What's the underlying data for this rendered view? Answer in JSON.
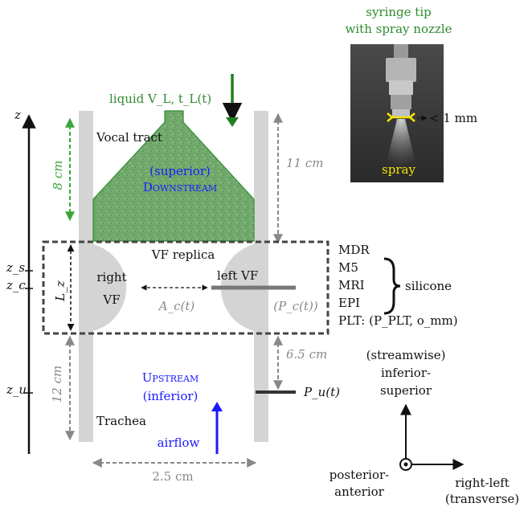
{
  "photo": {
    "title_line1": "syringe tip",
    "title_line2": "with spray nozzle",
    "size_label": "< 1 mm",
    "spray_label": "spray"
  },
  "vocal_tract": {
    "liquid_label": "liquid V_L, t_L(t)",
    "tract_label": "Vocal tract",
    "downstream_line1": "(superior)",
    "downstream_line2": "Downstream",
    "height_label": "8 cm",
    "gap_label": "11 cm"
  },
  "vf": {
    "replica_label": "VF replica",
    "right_vf_line1": "right",
    "right_vf_line2": "VF",
    "left_vf_label": "left VF",
    "area_label": "A_c(t)",
    "pressure_label": "(P_c(t))",
    "length_label": "L_z"
  },
  "replicas": {
    "items": [
      "MDR",
      "M5",
      "MRI",
      "EPI"
    ],
    "silicone_label": "silicone",
    "plt_label": "PLT: (P_PLT, o_mm)"
  },
  "trachea": {
    "upstream_line1": "Upstream",
    "upstream_line2": "(inferior)",
    "trachea_label": "Trachea",
    "airflow_label": "airflow",
    "height_label": "12 cm",
    "width_label": "2.5 cm",
    "tap_gap_label": "6.5 cm",
    "pressure_label": "P_u(t)"
  },
  "axis": {
    "z_label": "z",
    "zs_label": "z_s",
    "zc_label": "z_c",
    "zu_label": "z_u"
  },
  "axes_legend": {
    "streamwise_line1": "(streamwise)",
    "streamwise_line2": "inferior-",
    "streamwise_line3": "superior",
    "post_line1": "posterior-",
    "post_line2": "anterior",
    "rl_line1": "right-left",
    "rl_line2": "(transverse)"
  },
  "colors": {
    "liquid_green": "#2e8b2e",
    "accent_blue": "#1a1aff",
    "wall_gray": "#d4d4d4",
    "dim_gray": "#888888",
    "spray_yellow": "#f2e600"
  }
}
